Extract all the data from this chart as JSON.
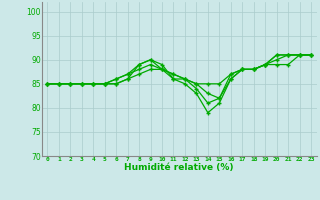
{
  "title": "",
  "xlabel": "Humidité relative (%)",
  "ylabel": "",
  "background_color": "#cce8e8",
  "grid_color": "#aacccc",
  "line_color": "#00aa00",
  "marker_color": "#00aa00",
  "xlim": [
    -0.5,
    23.5
  ],
  "ylim": [
    70,
    102
  ],
  "yticks": [
    70,
    75,
    80,
    85,
    90,
    95,
    100
  ],
  "xticks": [
    0,
    1,
    2,
    3,
    4,
    5,
    6,
    7,
    8,
    9,
    10,
    11,
    12,
    13,
    14,
    15,
    16,
    17,
    18,
    19,
    20,
    21,
    22,
    23
  ],
  "xtick_labels": [
    "0",
    "1",
    "2",
    "3",
    "4",
    "5",
    "6",
    "7",
    "8",
    "9",
    "10",
    "11",
    "12",
    "13",
    "14",
    "15",
    "16",
    "17",
    "18",
    "19",
    "20",
    "21",
    "22",
    "23"
  ],
  "series": [
    [
      85,
      85,
      85,
      85,
      85,
      85,
      85,
      86,
      89,
      90,
      89,
      86,
      85,
      83,
      79,
      81,
      86,
      88,
      88,
      89,
      91,
      91,
      91,
      91
    ],
    [
      85,
      85,
      85,
      85,
      85,
      85,
      86,
      87,
      89,
      90,
      88,
      87,
      86,
      84,
      81,
      82,
      86,
      88,
      88,
      89,
      91,
      91,
      91,
      91
    ],
    [
      85,
      85,
      85,
      85,
      85,
      85,
      86,
      87,
      88,
      89,
      88,
      87,
      86,
      85,
      83,
      82,
      87,
      88,
      88,
      89,
      90,
      91,
      91,
      91
    ],
    [
      85,
      85,
      85,
      85,
      85,
      85,
      85,
      86,
      87,
      88,
      88,
      86,
      86,
      85,
      85,
      85,
      87,
      88,
      88,
      89,
      89,
      89,
      91,
      91
    ]
  ]
}
